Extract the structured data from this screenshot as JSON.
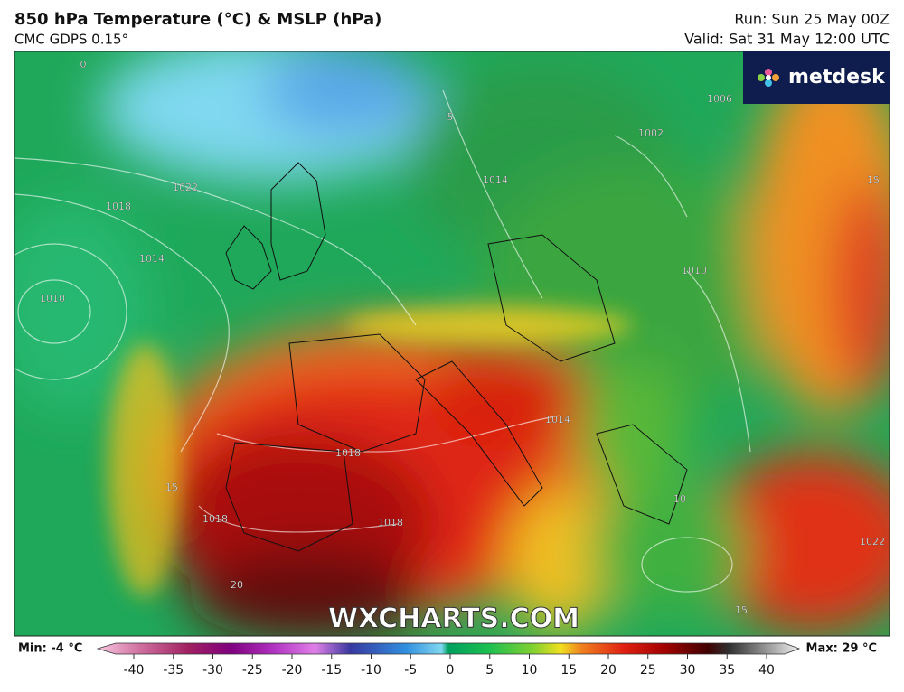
{
  "header": {
    "title": "850 hPa Temperature (°C) & MSLP (hPa)",
    "subtitle": "CMC GDPS 0.15°",
    "run": "Run: Sun 25 May 00Z",
    "valid": "Valid: Sat 31 May 12:00 UTC"
  },
  "logo": "metdesk",
  "watermark": "WXCHARTS.COM",
  "map_labels": [
    "0",
    "5",
    "1022",
    "1018",
    "1014",
    "1010",
    "1014",
    "1006",
    "1002",
    "1010",
    "15",
    "1018",
    "1018",
    "1018",
    "1014",
    "15",
    "10",
    "20",
    "15",
    "1022"
  ],
  "legend": {
    "min_label": "Min: -4 °C",
    "max_label": "Max: 29 °C",
    "ticks": [
      -40,
      -35,
      -30,
      -25,
      -20,
      -15,
      -10,
      -5,
      0,
      5,
      10,
      15,
      20,
      25,
      30,
      35,
      40
    ]
  }
}
